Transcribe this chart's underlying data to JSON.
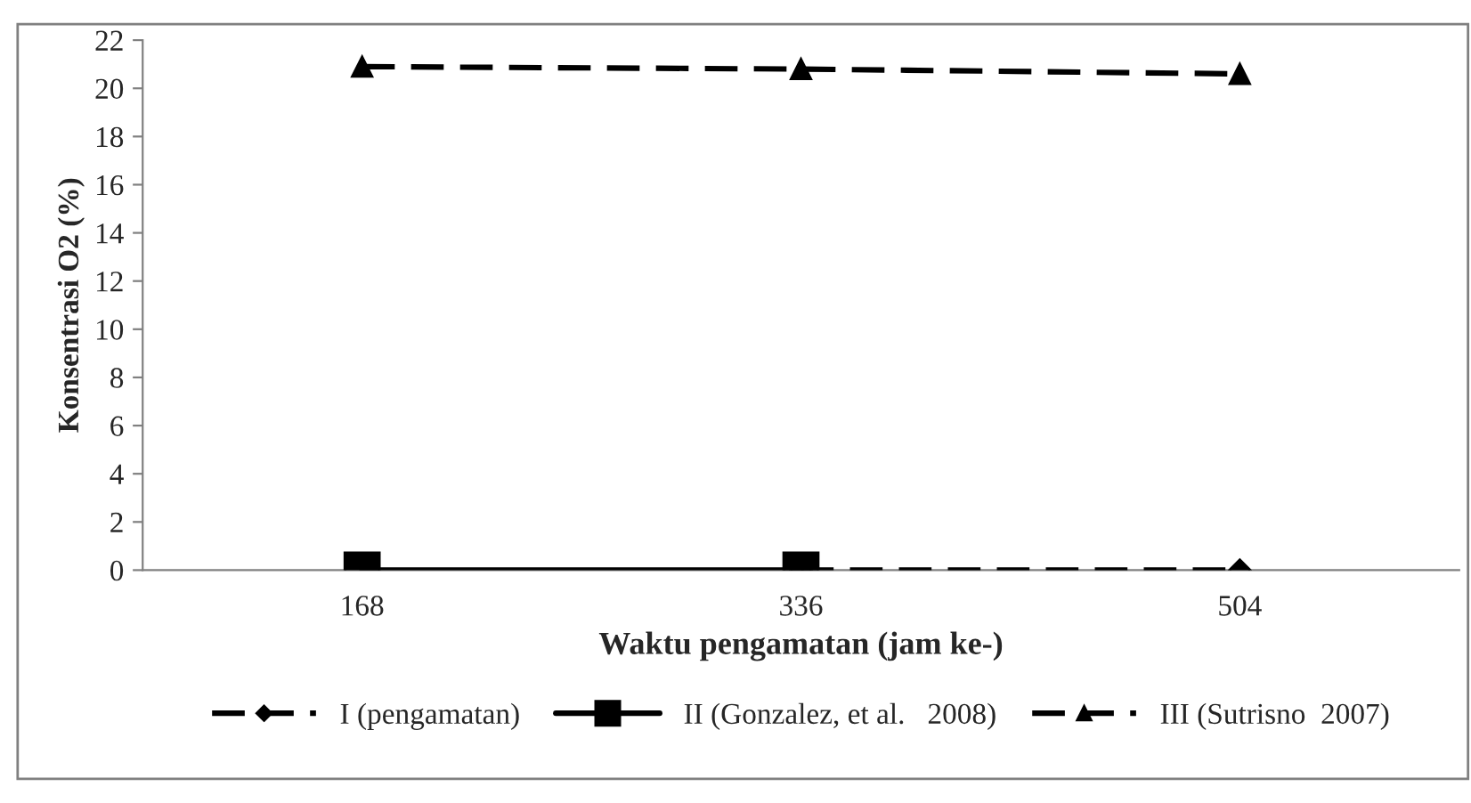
{
  "chart_data": {
    "type": "line",
    "xlabel": "Waktu pengamatan (jam ke-)",
    "ylabel": "Konsentrasi O2 (%)",
    "categories": [
      "168",
      "336",
      "504"
    ],
    "series": [
      {
        "name": "I (pengamatan)",
        "color": "#000000",
        "values": [
          null,
          0,
          0
        ],
        "marker": "diamond",
        "line_style": "dashed"
      },
      {
        "name": "II (Gonzalez, et al.   2008)",
        "color": "#000000",
        "values": [
          0,
          0,
          null
        ],
        "marker": "square",
        "line_style": "solid"
      },
      {
        "name": "III (Sutrisno  2007)",
        "color": "#000000",
        "values": [
          20.9,
          20.8,
          20.6
        ],
        "marker": "triangle",
        "line_style": "dashed"
      }
    ],
    "ylim": [
      0,
      22
    ],
    "yticks": [
      0,
      2,
      4,
      6,
      8,
      10,
      12,
      14,
      16,
      18,
      20,
      22
    ],
    "grid": false,
    "legend": "bottom"
  }
}
